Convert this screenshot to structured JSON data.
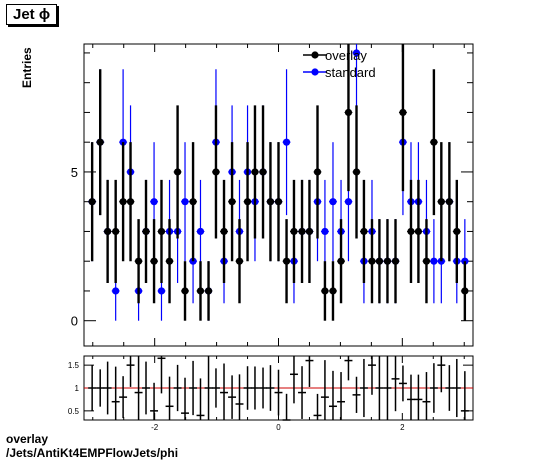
{
  "title": "Jet  ϕ",
  "ylabel": "Entries",
  "footer": [
    "overlay",
    "/Jets/AntiKt4EMPFlowJets/phi"
  ],
  "colors": {
    "overlay": "#000000",
    "standard": "#0000ff",
    "ratio_line": "#cc0000"
  },
  "chart_data": [
    {
      "type": "scatter",
      "ylabel": "Entries",
      "xlim": [
        -3.1416,
        3.1416
      ],
      "ylim": [
        -0.85,
        9.3
      ],
      "yticks": [
        "0",
        "5"
      ],
      "legend_position": "top-right",
      "x": [
        -3.01,
        -2.88,
        -2.76,
        -2.63,
        -2.51,
        -2.39,
        -2.26,
        -2.14,
        -2.01,
        -1.89,
        -1.76,
        -1.63,
        -1.51,
        -1.38,
        -1.26,
        -1.13,
        -1.01,
        -0.88,
        -0.75,
        -0.63,
        -0.5,
        -0.38,
        -0.25,
        -0.13,
        0.0,
        0.13,
        0.25,
        0.38,
        0.5,
        0.63,
        0.75,
        0.88,
        1.01,
        1.13,
        1.26,
        1.38,
        1.51,
        1.63,
        1.76,
        1.89,
        2.01,
        2.14,
        2.26,
        2.39,
        2.51,
        2.63,
        2.76,
        2.88,
        3.01
      ],
      "series": [
        {
          "name": "overlay",
          "values": [
            4,
            6,
            3,
            3,
            4,
            4,
            2,
            3,
            2,
            3,
            2,
            5,
            1,
            4,
            1,
            1,
            5,
            3,
            4,
            2,
            4,
            5,
            5,
            4,
            4,
            2,
            3,
            3,
            3,
            5,
            1,
            1,
            2,
            7,
            5,
            3,
            2,
            2,
            2,
            2,
            7,
            3,
            3,
            2,
            6,
            4,
            4,
            3,
            1
          ]
        },
        {
          "name": "standard",
          "values": [
            4,
            6,
            3,
            1,
            6,
            5,
            1,
            3,
            4,
            1,
            3,
            3,
            4,
            2,
            3,
            1,
            6,
            2,
            5,
            3,
            5,
            4,
            5,
            4,
            4,
            6,
            2,
            3,
            3,
            4,
            3,
            4,
            3,
            4,
            9,
            2,
            3,
            2,
            2,
            2,
            6,
            4,
            4,
            3,
            2,
            2,
            4,
            2,
            2
          ]
        }
      ]
    },
    {
      "type": "scatter",
      "xlim": [
        -3.1416,
        3.1416
      ],
      "ylim": [
        0.3,
        1.7
      ],
      "yticks": [
        "0.5",
        "1",
        "1.5"
      ],
      "xticks": [
        "-2",
        "0",
        "2"
      ],
      "reference_line": 1,
      "x": [
        -3.01,
        -2.88,
        -2.76,
        -2.63,
        -2.51,
        -2.39,
        -2.26,
        -2.14,
        -2.01,
        -1.89,
        -1.76,
        -1.63,
        -1.51,
        -1.38,
        -1.26,
        -1.13,
        -1.01,
        -0.88,
        -0.75,
        -0.63,
        -0.5,
        -0.38,
        -0.25,
        -0.13,
        0.0,
        0.13,
        0.25,
        0.38,
        0.5,
        0.63,
        0.75,
        0.88,
        1.01,
        1.13,
        1.26,
        1.38,
        1.51,
        1.63,
        1.76,
        1.89,
        2.01,
        2.14,
        2.26,
        2.39,
        2.51,
        2.63,
        2.76,
        2.88,
        3.01
      ],
      "values": [
        1.0,
        1.0,
        1.0,
        0.7,
        0.8,
        1.5,
        0.9,
        1.0,
        0.5,
        1.65,
        0.6,
        1.0,
        0.45,
        1.0,
        0.4,
        1.0,
        1.0,
        0.9,
        0.8,
        0.65,
        1.0,
        1.0,
        1.0,
        1.0,
        0.9,
        0.3,
        1.3,
        0.9,
        1.6,
        0.4,
        0.8,
        0.6,
        0.7,
        1.6,
        0.85,
        1.0,
        1.5,
        1.0,
        1.0,
        1.2,
        1.1,
        0.75,
        0.75,
        0.7,
        1.0,
        1.5,
        1.0,
        1.0,
        0.5
      ]
    }
  ]
}
